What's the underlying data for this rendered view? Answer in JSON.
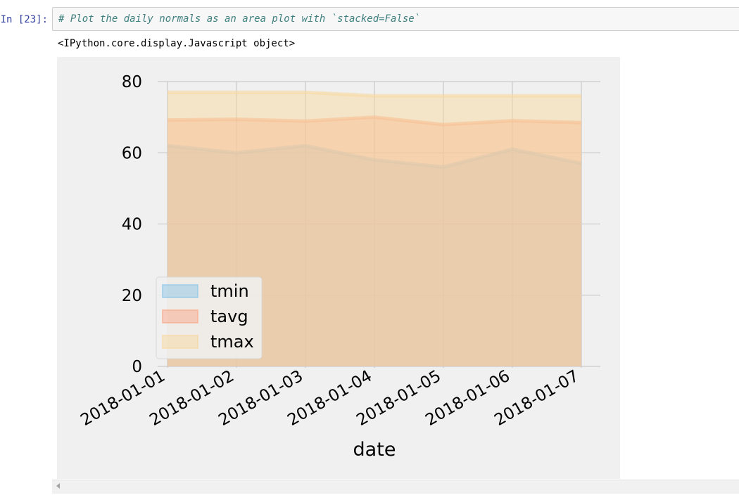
{
  "cell": {
    "prompt": "In [23]:",
    "code": "# Plot the daily normals as an area plot with `stacked=False`",
    "output_text": "<IPython.core.display.Javascript object>"
  },
  "colors": {
    "tmin": "#8ec6e8",
    "tavg": "#f9a889",
    "tmax": "#f7d9a0",
    "background": "#f0f0f0",
    "grid": "#cbcbcb"
  },
  "chart_data": {
    "type": "area",
    "stacked": false,
    "x": [
      "2018-01-01",
      "2018-01-02",
      "2018-01-03",
      "2018-01-04",
      "2018-01-05",
      "2018-01-06",
      "2018-01-07"
    ],
    "series": [
      {
        "name": "tmin",
        "values": [
          62.0,
          60.0,
          62.0,
          58.0,
          56.0,
          61.0,
          57.0
        ]
      },
      {
        "name": "tavg",
        "values": [
          69.2,
          69.4,
          68.9,
          70.0,
          67.9,
          69.0,
          68.5
        ]
      },
      {
        "name": "tmax",
        "values": [
          77.0,
          77.0,
          77.0,
          76.0,
          76.0,
          76.0,
          76.0
        ]
      }
    ],
    "xlabel": "date",
    "ylabel": "",
    "ylim": [
      0,
      80
    ],
    "yticks": [
      0,
      20,
      40,
      60,
      80
    ],
    "grid": true,
    "legend": "lower-left"
  }
}
